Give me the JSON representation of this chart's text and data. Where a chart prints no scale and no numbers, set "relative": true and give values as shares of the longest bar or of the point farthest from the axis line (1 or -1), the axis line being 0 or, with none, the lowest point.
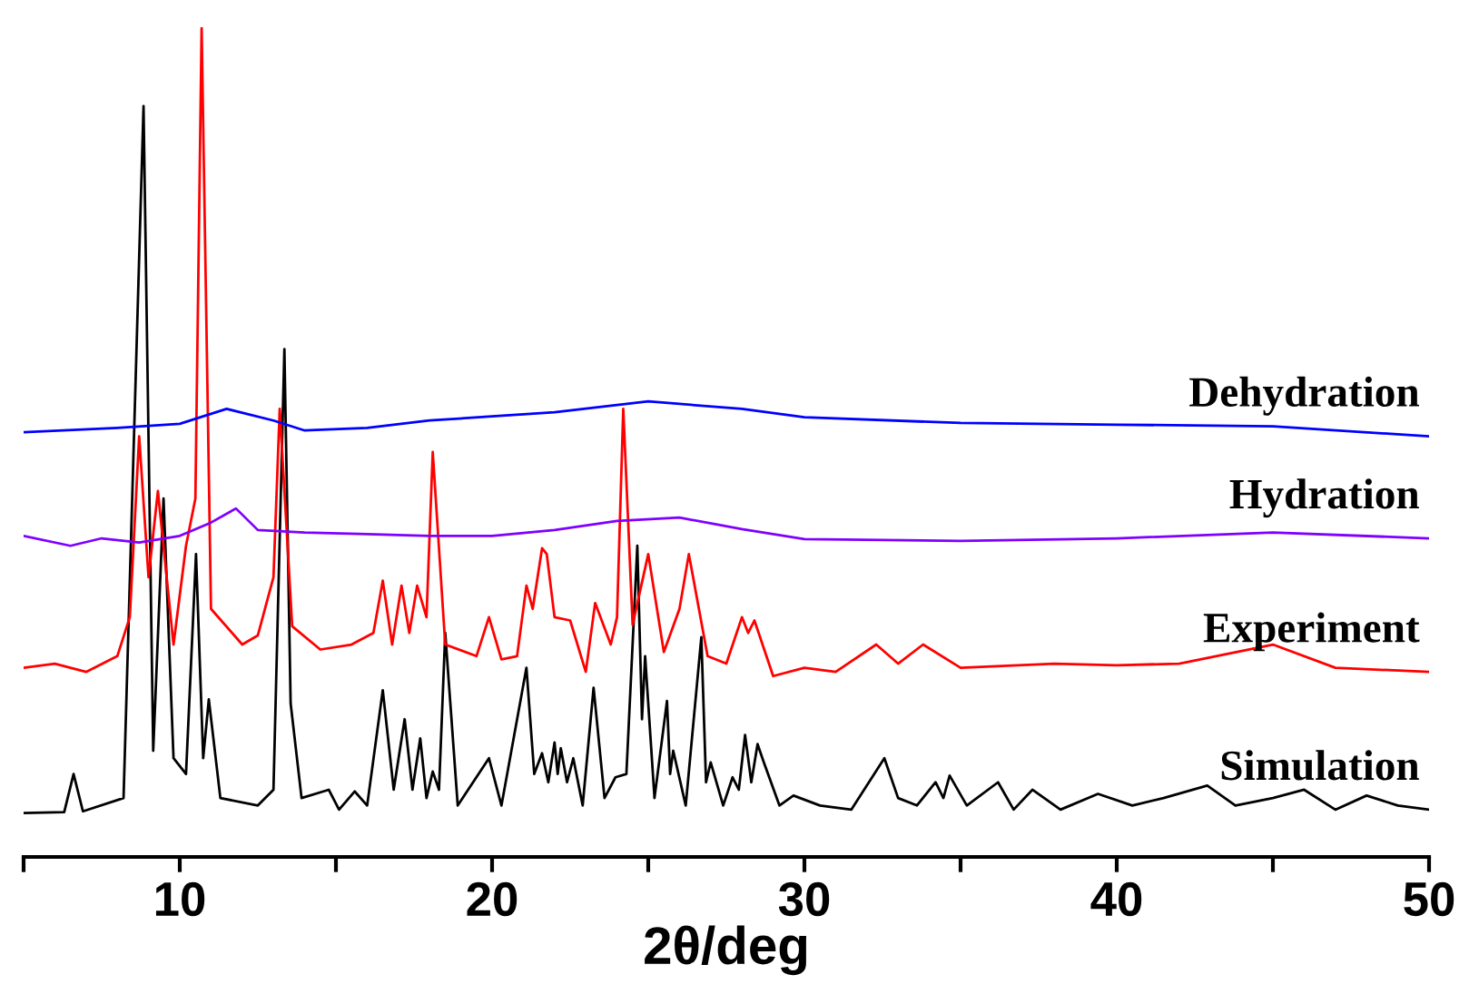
{
  "chart_data": {
    "type": "line",
    "relative": true,
    "xlabel": "2θ/deg",
    "xlim": [
      5,
      50
    ],
    "xticks": [
      {
        "value": 5,
        "label": null
      },
      10,
      {
        "value": 15,
        "label": null
      },
      20,
      {
        "value": 25,
        "label": null
      },
      30,
      {
        "value": 35,
        "label": null
      },
      40,
      {
        "value": 45,
        "label": null
      },
      50
    ],
    "tick_labels": "x",
    "grid": false,
    "legend": false,
    "marker": "none",
    "line_style": "solid",
    "series": [
      {
        "name": "Simulation",
        "color": "#000000",
        "x": [
          5,
          6.3,
          6.6,
          6.9,
          8.2,
          8.84,
          9.15,
          9.48,
          9.8,
          10.2,
          10.52,
          10.75,
          10.93,
          11.3,
          12.5,
          13.0,
          13.35,
          13.55,
          13.9,
          14.77,
          15.1,
          15.6,
          16.0,
          16.5,
          16.85,
          17.2,
          17.45,
          17.7,
          17.9,
          18.1,
          18.3,
          18.5,
          18.9,
          19.9,
          20.3,
          21.1,
          21.35,
          21.6,
          21.8,
          22.0,
          22.1,
          22.2,
          22.4,
          22.6,
          22.9,
          23.25,
          23.6,
          23.95,
          24.3,
          24.65,
          24.8,
          24.9,
          25.2,
          25.6,
          25.7,
          25.8,
          26.2,
          26.7,
          26.85,
          27.0,
          27.4,
          27.7,
          27.9,
          28.1,
          28.3,
          28.5,
          28.7,
          29.2,
          29.65,
          30.5,
          31.5,
          32.56,
          33.0,
          33.6,
          34.2,
          34.45,
          34.65,
          35.2,
          36.2,
          36.7,
          37.3,
          38.2,
          39.4,
          40.5,
          41.5,
          42.9,
          43.8,
          45.0,
          46.0,
          47.0,
          48.0,
          49.0,
          50
        ],
        "values": [
          0.053,
          0.054,
          0.1,
          0.055,
          0.071,
          0.905,
          0.128,
          0.432,
          0.119,
          0.1,
          0.365,
          0.119,
          0.19,
          0.071,
          0.062,
          0.081,
          0.612,
          0.185,
          0.071,
          0.081,
          0.057,
          0.079,
          0.062,
          0.201,
          0.081,
          0.166,
          0.081,
          0.143,
          0.071,
          0.103,
          0.081,
          0.27,
          0.062,
          0.119,
          0.062,
          0.228,
          0.1,
          0.125,
          0.09,
          0.138,
          0.1,
          0.131,
          0.09,
          0.119,
          0.062,
          0.204,
          0.071,
          0.096,
          0.1,
          0.375,
          0.166,
          0.242,
          0.071,
          0.188,
          0.1,
          0.128,
          0.062,
          0.265,
          0.09,
          0.114,
          0.062,
          0.096,
          0.081,
          0.147,
          0.09,
          0.136,
          0.114,
          0.062,
          0.074,
          0.062,
          0.057,
          0.119,
          0.071,
          0.062,
          0.09,
          0.071,
          0.098,
          0.062,
          0.09,
          0.057,
          0.081,
          0.057,
          0.076,
          0.062,
          0.071,
          0.086,
          0.062,
          0.071,
          0.081,
          0.057,
          0.074,
          0.062,
          0.057
        ]
      },
      {
        "name": "Experiment",
        "color": "#ff0000",
        "x": [
          5,
          6,
          7,
          8,
          8.4,
          8.7,
          9.0,
          9.3,
          9.8,
          10.2,
          10.5,
          10.7,
          11.0,
          12.0,
          12.5,
          13.0,
          13.2,
          13.6,
          14.5,
          15.5,
          16.2,
          16.5,
          16.8,
          17.1,
          17.35,
          17.6,
          17.9,
          18.1,
          18.5,
          19.5,
          19.9,
          20.3,
          20.8,
          21.1,
          21.3,
          21.6,
          21.75,
          22.0,
          22.5,
          23.0,
          23.3,
          23.8,
          24.0,
          24.2,
          24.5,
          25.0,
          25.5,
          26.0,
          26.3,
          26.9,
          27.5,
          28.0,
          28.2,
          28.4,
          29.0,
          30.0,
          31.0,
          32.3,
          33.0,
          33.8,
          35.0,
          38.0,
          40.0,
          42.0,
          45.0,
          47.0,
          50
        ],
        "values": [
          0.228,
          0.233,
          0.223,
          0.242,
          0.289,
          0.507,
          0.337,
          0.441,
          0.256,
          0.375,
          0.432,
          1,
          0.299,
          0.256,
          0.267,
          0.337,
          0.54,
          0.278,
          0.25,
          0.256,
          0.27,
          0.333,
          0.256,
          0.327,
          0.27,
          0.327,
          0.289,
          0.488,
          0.256,
          0.242,
          0.289,
          0.238,
          0.242,
          0.327,
          0.299,
          0.372,
          0.365,
          0.289,
          0.285,
          0.223,
          0.306,
          0.256,
          0.289,
          0.54,
          0.28,
          0.365,
          0.247,
          0.299,
          0.365,
          0.242,
          0.233,
          0.289,
          0.27,
          0.285,
          0.218,
          0.228,
          0.223,
          0.256,
          0.233,
          0.256,
          0.228,
          0.233,
          0.231,
          0.233,
          0.256,
          0.228,
          0.223
        ]
      },
      {
        "name": "Hydration",
        "color": "#8000ff",
        "x": [
          5,
          6.5,
          7.5,
          8.7,
          10,
          11.0,
          11.8,
          12.5,
          14,
          16,
          18,
          20,
          22,
          24,
          26,
          28,
          30,
          35,
          40,
          45,
          50
        ],
        "values": [
          0.387,
          0.375,
          0.384,
          0.379,
          0.387,
          0.403,
          0.42,
          0.394,
          0.391,
          0.389,
          0.387,
          0.387,
          0.394,
          0.405,
          0.409,
          0.395,
          0.383,
          0.381,
          0.384,
          0.391,
          0.384
        ]
      },
      {
        "name": "Dehydration",
        "color": "#0000ff",
        "x": [
          5,
          8,
          10,
          11.5,
          13,
          14,
          16,
          18,
          20,
          22,
          25,
          28,
          30,
          35,
          40,
          45,
          50
        ],
        "values": [
          0.512,
          0.517,
          0.522,
          0.54,
          0.526,
          0.514,
          0.517,
          0.526,
          0.531,
          0.536,
          0.549,
          0.54,
          0.53,
          0.523,
          0.521,
          0.519,
          0.507
        ]
      }
    ]
  }
}
